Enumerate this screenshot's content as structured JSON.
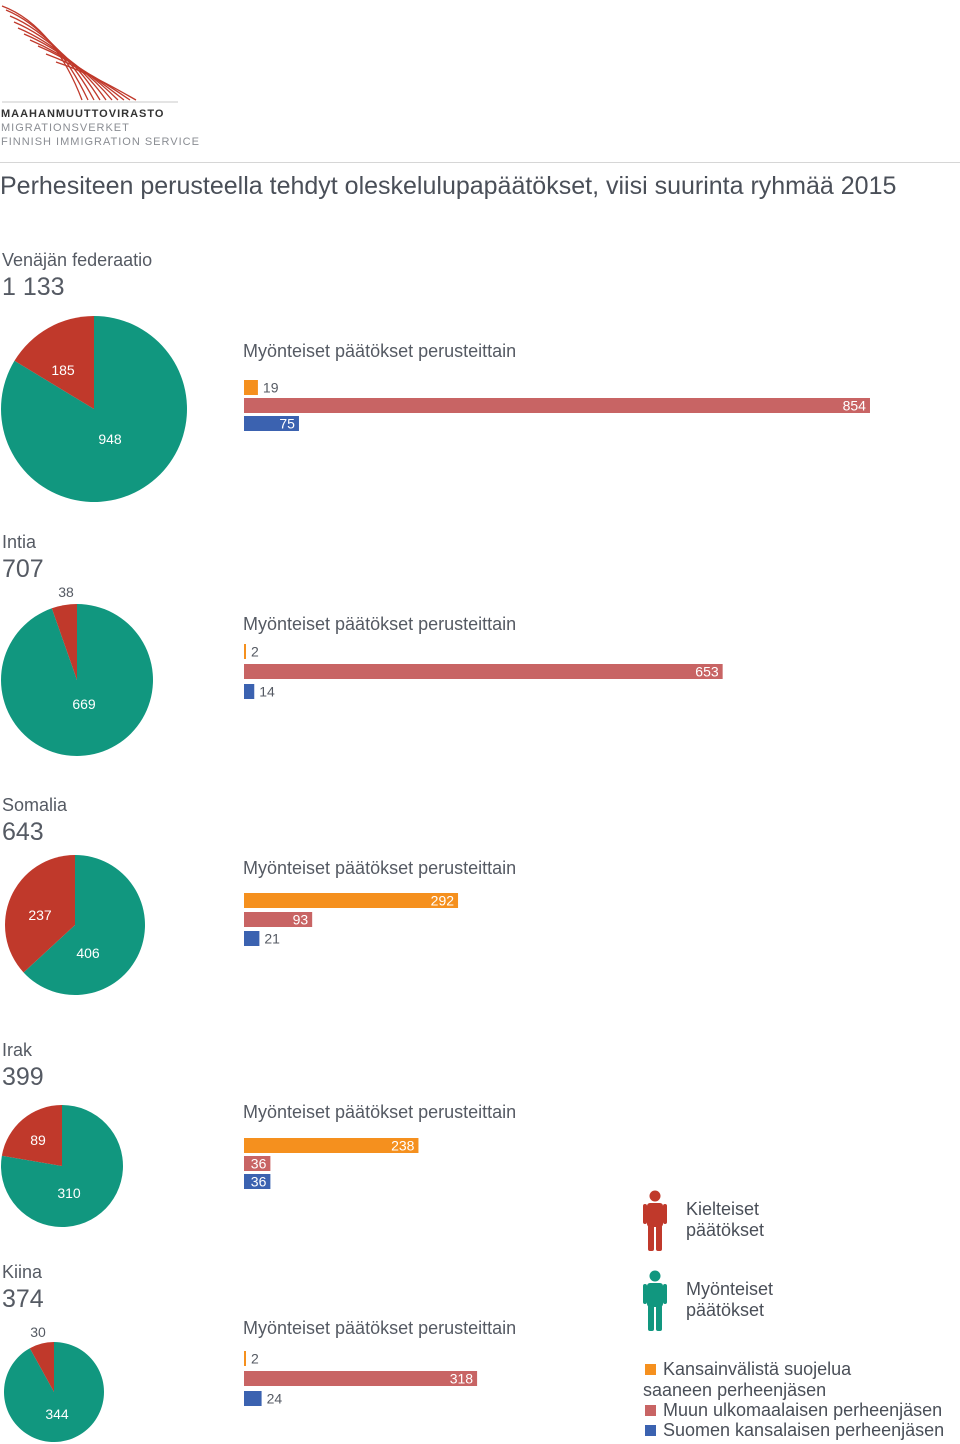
{
  "header": {
    "org_fi": "MAAHANMUUTTOVIRASTO",
    "org_sv": "MIGRATIONSVERKET",
    "org_en": "FINNISH IMMIGRATION SERVICE",
    "title": "Perhesiteen perusteella tehdyt oleskelulupapäätökset, viisi suurinta ryhmää 2015"
  },
  "colors": {
    "positive": "#11977f",
    "negative": "#c0392b",
    "protection": "#f5901e",
    "foreign": "#c86464",
    "finnish": "#3b62b0",
    "text": "#555a63",
    "logo": "#c0392b"
  },
  "chart_data": [
    {
      "type": "pie",
      "country": "Venäjän federaatio",
      "total": "1 133",
      "slices": [
        {
          "name": "Kielteiset päätökset",
          "value": 185
        },
        {
          "name": "Myönteiset päätökset",
          "value": 948
        }
      ],
      "bar_title": "Myönteiset päätökset perusteittain",
      "bars": [
        {
          "name": "Kansainvälistä suojelua saaneen perheenjäsen",
          "value": 19
        },
        {
          "name": "Muun ulkomaalaisen perheenjäsen",
          "value": 854
        },
        {
          "name": "Suomen kansalaisen perheenjäsen",
          "value": 75
        }
      ]
    },
    {
      "type": "pie",
      "country": "Intia",
      "total": "707",
      "slices": [
        {
          "name": "Kielteiset päätökset",
          "value": 38
        },
        {
          "name": "Myönteiset päätökset",
          "value": 669
        }
      ],
      "bar_title": "Myönteiset päätökset perusteittain",
      "bars": [
        {
          "name": "Kansainvälistä suojelua saaneen perheenjäsen",
          "value": 2
        },
        {
          "name": "Muun ulkomaalaisen perheenjäsen",
          "value": 653
        },
        {
          "name": "Suomen kansalaisen perheenjäsen",
          "value": 14
        }
      ]
    },
    {
      "type": "pie",
      "country": "Somalia",
      "total": "643",
      "slices": [
        {
          "name": "Kielteiset päätökset",
          "value": 237
        },
        {
          "name": "Myönteiset päätökset",
          "value": 406
        }
      ],
      "bar_title": "Myönteiset päätökset perusteittain",
      "bars": [
        {
          "name": "Kansainvälistä suojelua saaneen perheenjäsen",
          "value": 292
        },
        {
          "name": "Muun ulkomaalaisen perheenjäsen",
          "value": 93
        },
        {
          "name": "Suomen kansalaisen perheenjäsen",
          "value": 21
        }
      ]
    },
    {
      "type": "pie",
      "country": "Irak",
      "total": "399",
      "slices": [
        {
          "name": "Kielteiset päätökset",
          "value": 89
        },
        {
          "name": "Myönteiset päätökset",
          "value": 310
        }
      ],
      "bar_title": "Myönteiset päätökset perusteittain",
      "bars": [
        {
          "name": "Kansainvälistä suojelua saaneen perheenjäsen",
          "value": 238
        },
        {
          "name": "Muun ulkomaalaisen perheenjäsen",
          "value": 36
        },
        {
          "name": "Suomen kansalaisen perheenjäsen",
          "value": 36
        }
      ]
    },
    {
      "type": "pie",
      "country": "Kiina",
      "total": "374",
      "slices": [
        {
          "name": "Kielteiset päätökset",
          "value": 30
        },
        {
          "name": "Myönteiset päätökset",
          "value": 344
        }
      ],
      "bar_title": "Myönteiset päätökset perusteittain",
      "bars": [
        {
          "name": "Kansainvälistä suojelua saaneen perheenjäsen",
          "value": 2
        },
        {
          "name": "Muun ulkomaalaisen perheenjäsen",
          "value": 318
        },
        {
          "name": "Suomen kansalaisen perheenjäsen",
          "value": 24
        }
      ]
    }
  ],
  "legend": {
    "negative_line1": "Kielteiset",
    "negative_line2": "päätökset",
    "positive_line1": "Myönteiset",
    "positive_line2": "päätökset",
    "protection_line1": "Kansainvälistä suojelua",
    "protection_line2": "saaneen perheenjäsen",
    "foreign": "Muun ulkomaalaisen perheenjäsen",
    "finnish": "Suomen kansalaisen perheenjäsen"
  }
}
